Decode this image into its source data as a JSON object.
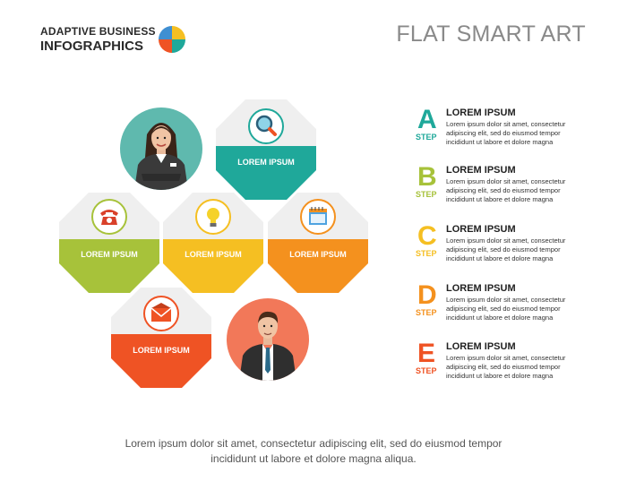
{
  "header": {
    "brand_line1": "ADAPTIVE BUSINESS",
    "brand_line2": "INFOGRAPHICS",
    "title": "FLAT SMART ART"
  },
  "blocks": [
    {
      "label": "LOREM IPSUM",
      "icon": "magnifier-icon",
      "color": "#1fa89a"
    },
    {
      "label": "LOREM IPSUM",
      "icon": "phone-icon",
      "color": "#a7c23a"
    },
    {
      "label": "LOREM IPSUM",
      "icon": "lightbulb-icon",
      "color": "#f5bf22"
    },
    {
      "label": "LOREM IPSUM",
      "icon": "calendar-icon",
      "color": "#f4911e"
    },
    {
      "label": "LOREM IPSUM",
      "icon": "envelope-icon",
      "color": "#ef5324"
    }
  ],
  "steps": [
    {
      "letter": "A",
      "step": "STEP",
      "title": "LOREM IPSUM",
      "line1": "Lorem ipsum dolor sit amet, consectetur",
      "line2": "adipiscing elit, sed do eiusmod tempor",
      "line3": "incididunt ut labore et dolore magna",
      "color": "#1fa89a"
    },
    {
      "letter": "B",
      "step": "STEP",
      "title": "LOREM IPSUM",
      "line1": "Lorem ipsum dolor sit amet, consectetur",
      "line2": "adipiscing elit, sed do eiusmod tempor",
      "line3": "incididunt ut labore et dolore magna",
      "color": "#a7c23a"
    },
    {
      "letter": "C",
      "step": "STEP",
      "title": "LOREM IPSUM",
      "line1": "Lorem ipsum dolor sit amet, consectetur",
      "line2": "adipiscing elit, sed do eiusmod tempor",
      "line3": "incididunt ut labore et dolore magna",
      "color": "#f5bf22"
    },
    {
      "letter": "D",
      "step": "STEP",
      "title": "LOREM IPSUM",
      "line1": "Lorem ipsum dolor sit amet, consectetur",
      "line2": "adipiscing elit, sed do eiusmod tempor",
      "line3": "incididunt ut labore et dolore magna",
      "color": "#f4911e"
    },
    {
      "letter": "E",
      "step": "STEP",
      "title": "LOREM IPSUM",
      "line1": "Lorem ipsum dolor sit amet, consectetur",
      "line2": "adipiscing elit, sed do eiusmod tempor",
      "line3": "incididunt ut labore et dolore magna",
      "color": "#ef5324"
    }
  ],
  "people": [
    {
      "icon": "businesswoman-icon",
      "color": "#5fb9ae"
    },
    {
      "icon": "businessman-icon",
      "color": "#f27859"
    }
  ],
  "footer": {
    "line1": "Lorem ipsum dolor sit amet, consectetur adipiscing elit, sed do eiusmod tempor",
    "line2": "incididunt ut labore et dolore magna aliqua."
  },
  "logo_colors": [
    "#f5bf22",
    "#1fa89a",
    "#ef5324",
    "#3f8fd2"
  ]
}
